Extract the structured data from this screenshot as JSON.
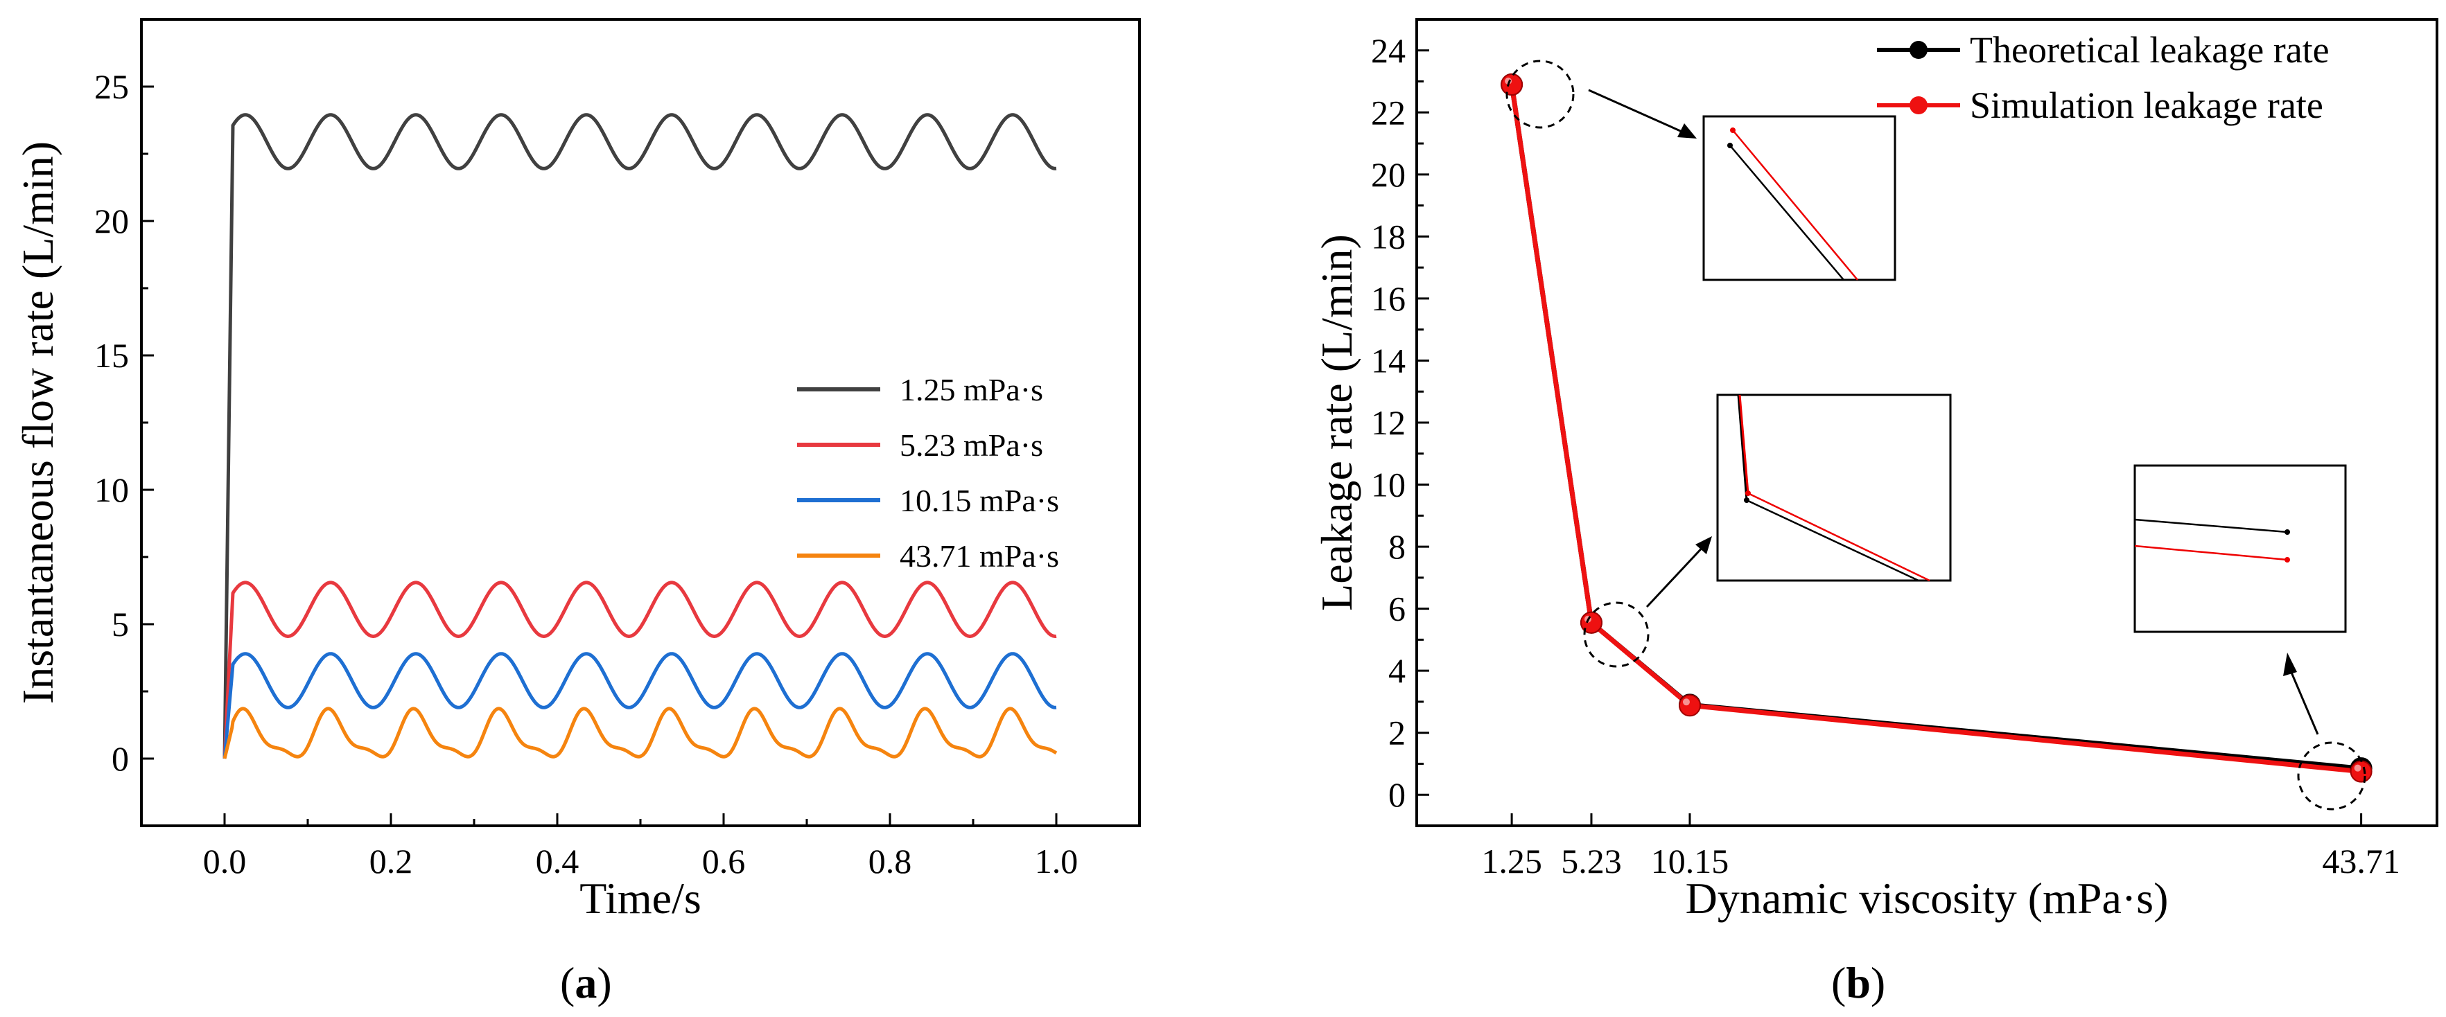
{
  "panel_a": {
    "caption_letter": "a",
    "chart_data": {
      "type": "line",
      "title": "",
      "xlabel": "Time/s",
      "ylabel": "Instantaneous flow rate (L/min)",
      "xlim": [
        -0.1,
        1.1
      ],
      "ylim": [
        -2.5,
        27.5
      ],
      "xticks": [
        0.0,
        0.2,
        0.4,
        0.6,
        0.8,
        1.0
      ],
      "xtick_labels": [
        "0.0",
        "0.2",
        "0.4",
        "0.6",
        "0.8",
        "1.0"
      ],
      "yticks": [
        0,
        5,
        10,
        15,
        20,
        25
      ],
      "ytick_labels": [
        "0",
        "5",
        "10",
        "15",
        "20",
        "25"
      ],
      "grid": false,
      "legend": "center-right",
      "series": [
        {
          "name": "1.25 mPa·s",
          "color": "#404040",
          "baseline": 22.95,
          "amplitude": 1.0,
          "period": 0.1025,
          "peak_t": 0.025,
          "rise_t": 0.01,
          "harmonic": 0
        },
        {
          "name": "5.23 mPa·s",
          "color": "#e8393f",
          "baseline": 5.55,
          "amplitude": 1.0,
          "period": 0.1025,
          "peak_t": 0.025,
          "rise_t": 0.01,
          "harmonic": 0
        },
        {
          "name": "10.15 mPa·s",
          "color": "#1e6fd2",
          "baseline": 2.9,
          "amplitude": 1.0,
          "period": 0.1025,
          "peak_t": 0.025,
          "rise_t": 0.01,
          "harmonic": 0
        },
        {
          "name": "43.71 mPa·s",
          "color": "#f5840f",
          "baseline": 0.8,
          "amplitude": 0.8,
          "period": 0.1025,
          "peak_t": 0.025,
          "rise_t": 0.01,
          "harmonic": 0.28
        }
      ]
    }
  },
  "panel_b": {
    "caption_letter": "b",
    "chart_data": {
      "type": "line",
      "title": "",
      "xlabel": "Dynamic viscosity (mPa·s)",
      "ylabel": "Leakage rate (L/min)",
      "xlim": [
        -3.5,
        47.5
      ],
      "ylim": [
        -1,
        25
      ],
      "x": [
        1.25,
        5.23,
        10.15,
        43.71
      ],
      "xtick_labels": [
        "1.25",
        "5.23",
        "10.15",
        "43.71"
      ],
      "yticks": [
        0,
        2,
        4,
        6,
        8,
        10,
        12,
        14,
        16,
        18,
        20,
        22,
        24
      ],
      "ytick_labels": [
        "0",
        "2",
        "4",
        "6",
        "8",
        "10",
        "12",
        "14",
        "16",
        "18",
        "20",
        "22",
        "24"
      ],
      "grid": false,
      "legend": "top-right",
      "series": [
        {
          "name": "Theoretical leakage rate",
          "color": "#000000",
          "values": [
            22.9,
            5.55,
            2.9,
            0.85
          ]
        },
        {
          "name": "Simulation leakage rate",
          "color": "#ee1111",
          "values": [
            22.9,
            5.55,
            2.88,
            0.75
          ]
        }
      ],
      "annotations": [
        "zoom-inset-1.25",
        "zoom-inset-5.23",
        "zoom-inset-43.71"
      ]
    }
  }
}
